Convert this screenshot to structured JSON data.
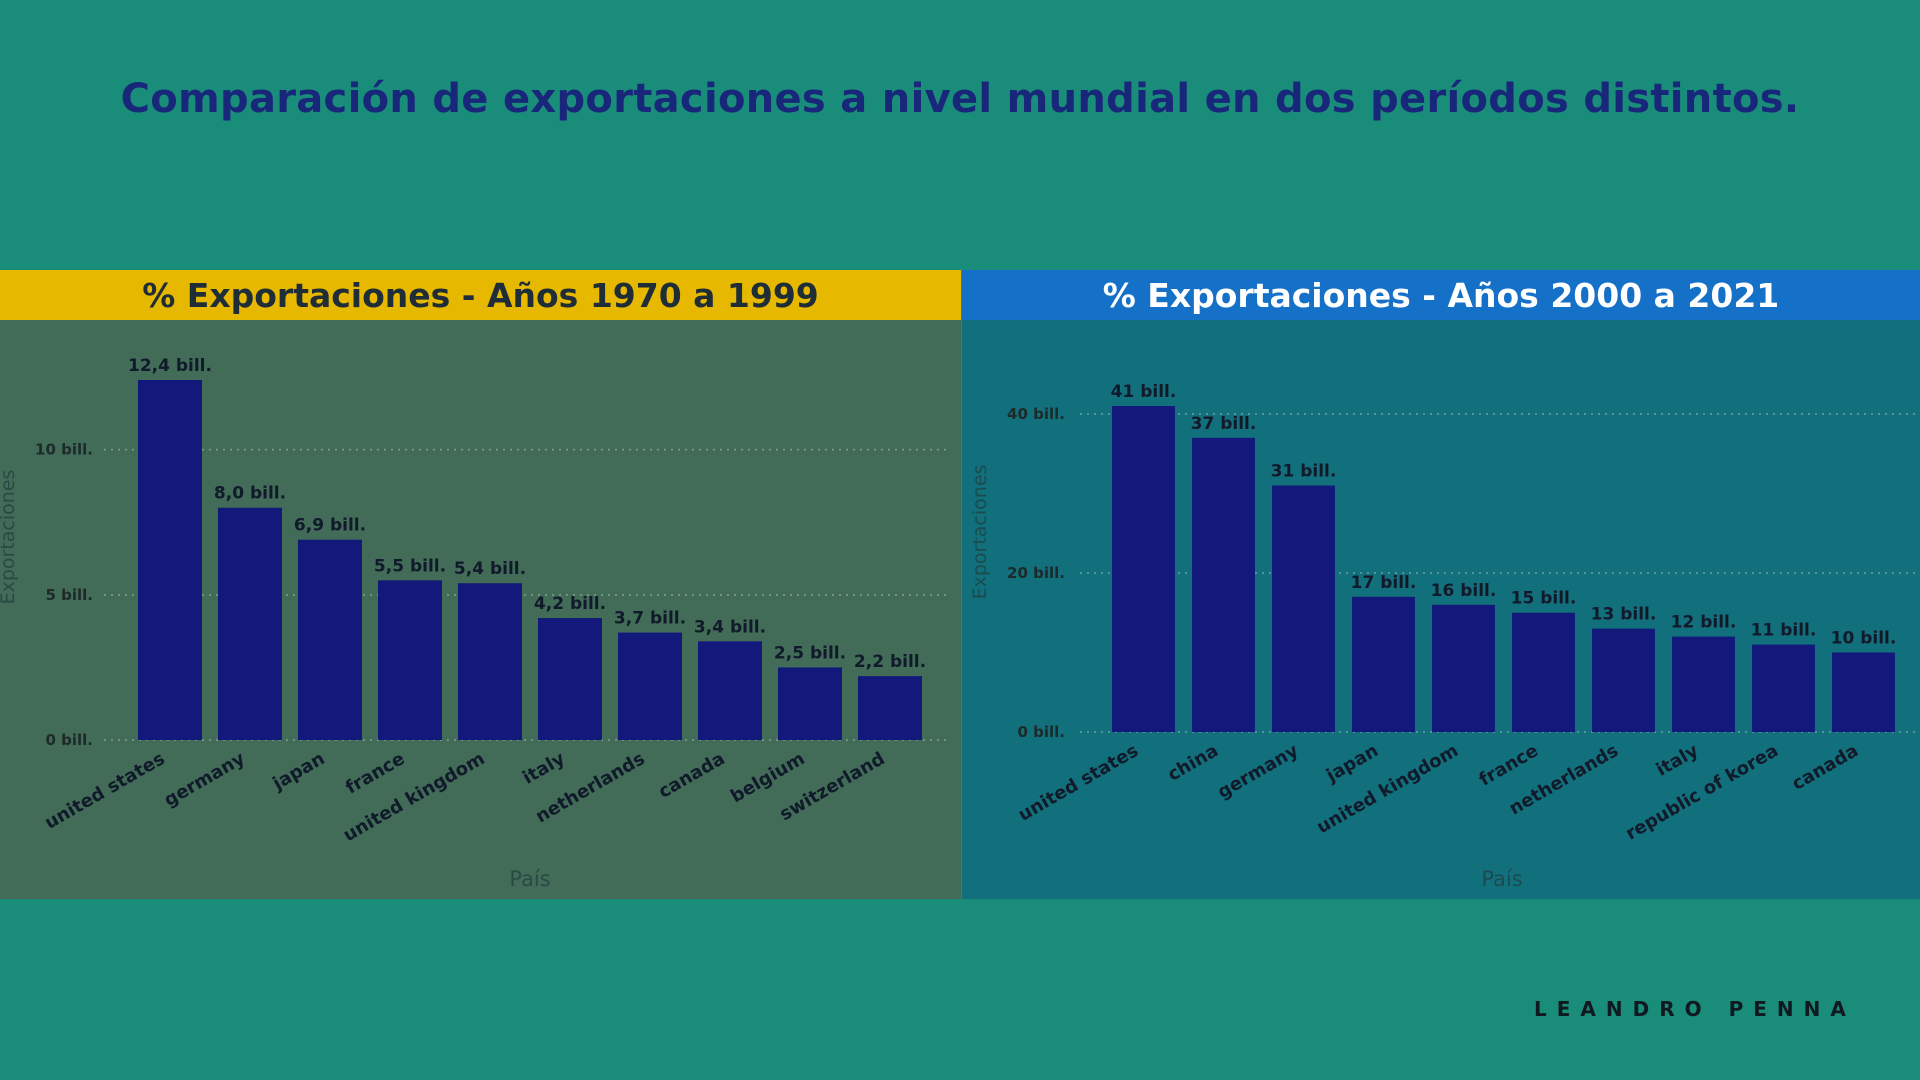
{
  "page": {
    "title": "Comparación de exportaciones a nivel mundial en dos períodos distintos.",
    "signature": "LEANDRO PENNA"
  },
  "colors": {
    "background": "#1a8c7a",
    "title": "#18277a",
    "bar": "#13197a",
    "left_header": "#e6b800",
    "right_header": "#1570c8",
    "left_panel": "#426c57",
    "right_panel": "#12707d",
    "axis_text": "#2a3a3a"
  },
  "chart_data": [
    {
      "type": "bar",
      "title": "% Exportaciones - Años 1970 a 1999",
      "xlabel": "País",
      "ylabel": "Exportaciones",
      "categories": [
        "united states",
        "germany",
        "japan",
        "france",
        "united kingdom",
        "italy",
        "netherlands",
        "canada",
        "belgium",
        "switzerland"
      ],
      "values": [
        12.4,
        8.0,
        6.9,
        5.5,
        5.4,
        4.2,
        3.7,
        3.4,
        2.5,
        2.2
      ],
      "data_labels": [
        "12,4 bill.",
        "8,0 bill.",
        "6,9 bill.",
        "5,5 bill.",
        "5,4 bill.",
        "4,2 bill.",
        "3,7 bill.",
        "3,4 bill.",
        "2,5 bill.",
        "2,2 bill."
      ],
      "ylim": [
        0,
        12.4
      ],
      "yticks": [
        0,
        5,
        10
      ],
      "ytick_labels": [
        "0 bill.",
        "5 bill.",
        "10 bill."
      ],
      "grid": true
    },
    {
      "type": "bar",
      "title": "% Exportaciones - Años 2000 a 2021",
      "xlabel": "País",
      "ylabel": "Exportaciones",
      "categories": [
        "united states",
        "china",
        "germany",
        "japan",
        "united kingdom",
        "france",
        "netherlands",
        "italy",
        "republic of korea",
        "canada"
      ],
      "values": [
        41,
        37,
        31,
        17,
        16,
        15,
        13,
        12,
        11,
        10
      ],
      "data_labels": [
        "41 bill.",
        "37 bill.",
        "31 bill.",
        "17 bill.",
        "16 bill.",
        "15 bill.",
        "13 bill.",
        "12 bill.",
        "11 bill.",
        "10 bill."
      ],
      "ylim": [
        0,
        41
      ],
      "yticks": [
        0,
        20,
        40
      ],
      "ytick_labels": [
        "0 bill.",
        "20 bill.",
        "40 bill."
      ],
      "grid": true
    }
  ]
}
